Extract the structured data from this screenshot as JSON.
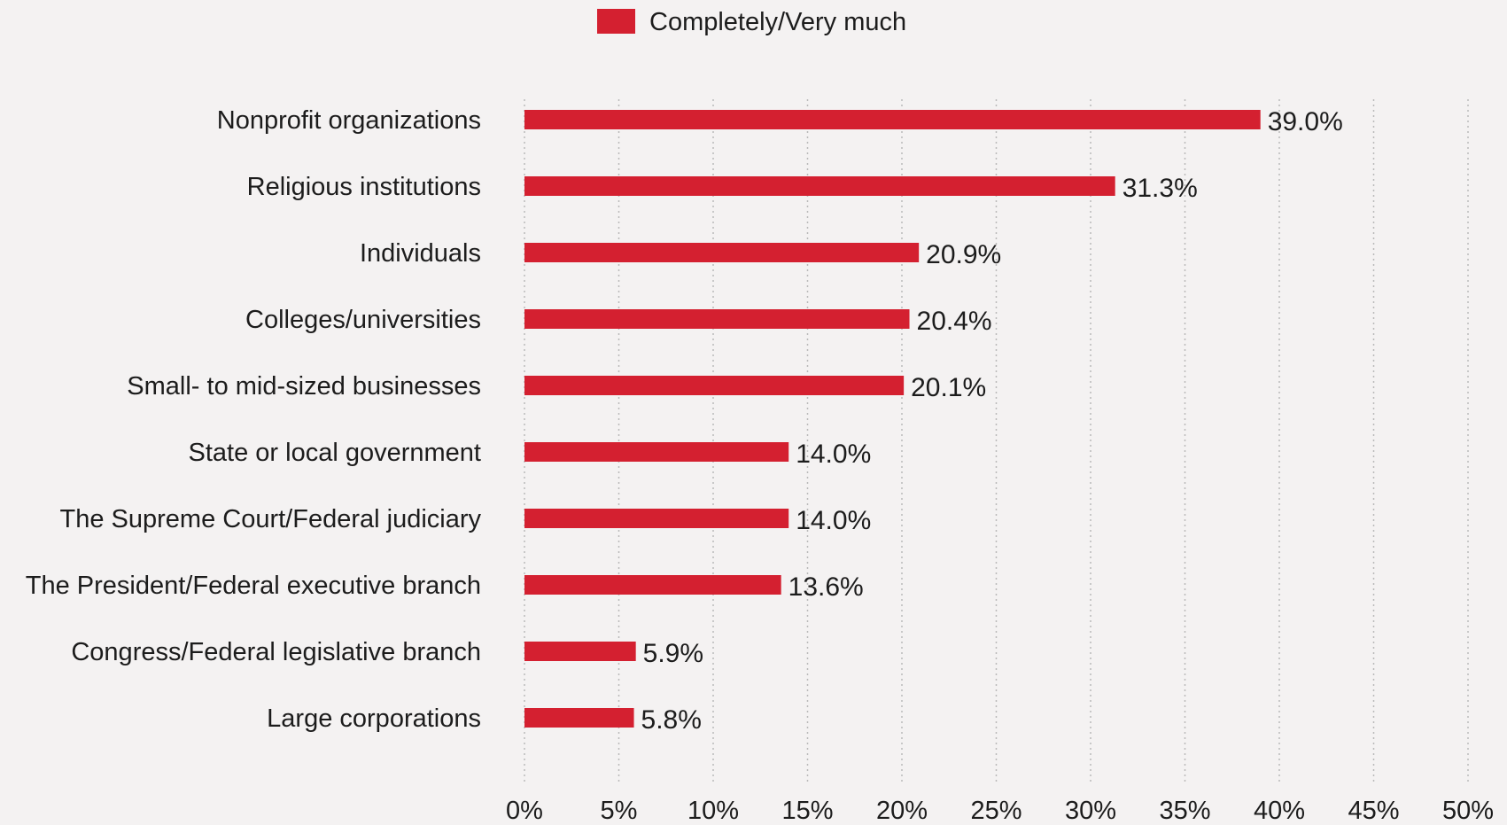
{
  "chart_data": {
    "type": "bar",
    "orientation": "horizontal",
    "categories": [
      "Nonprofit organizations",
      "Religious institutions",
      "Individuals",
      "Colleges/universities",
      "Small- to mid-sized businesses",
      "State or local government",
      "The Supreme Court/Federal judiciary",
      "The President/Federal executive branch",
      "Congress/Federal legislative branch",
      "Large corporations"
    ],
    "series": [
      {
        "name": "Completely/Very much",
        "values": [
          39.0,
          31.3,
          20.9,
          20.4,
          20.1,
          14.0,
          14.0,
          13.6,
          5.9,
          5.8
        ]
      }
    ],
    "value_labels": [
      "39.0%",
      "31.3%",
      "20.9%",
      "20.4%",
      "20.1%",
      "14.0%",
      "14.0%",
      "13.6%",
      "5.9%",
      "5.8%"
    ],
    "xlim": [
      0,
      50
    ],
    "xticks": [
      0,
      5,
      10,
      15,
      20,
      25,
      30,
      35,
      40,
      45,
      50
    ],
    "xtick_labels": [
      "0%",
      "5%",
      "10%",
      "15%",
      "20%",
      "25%",
      "30%",
      "35%",
      "40%",
      "45%",
      "50%"
    ],
    "grid": "vertical-dotted",
    "legend_position": "top-center",
    "colors": {
      "bar": "#d42030",
      "background": "#f4f2f2",
      "text": "#1c1c1c",
      "grid": "#b9b9b9"
    }
  }
}
